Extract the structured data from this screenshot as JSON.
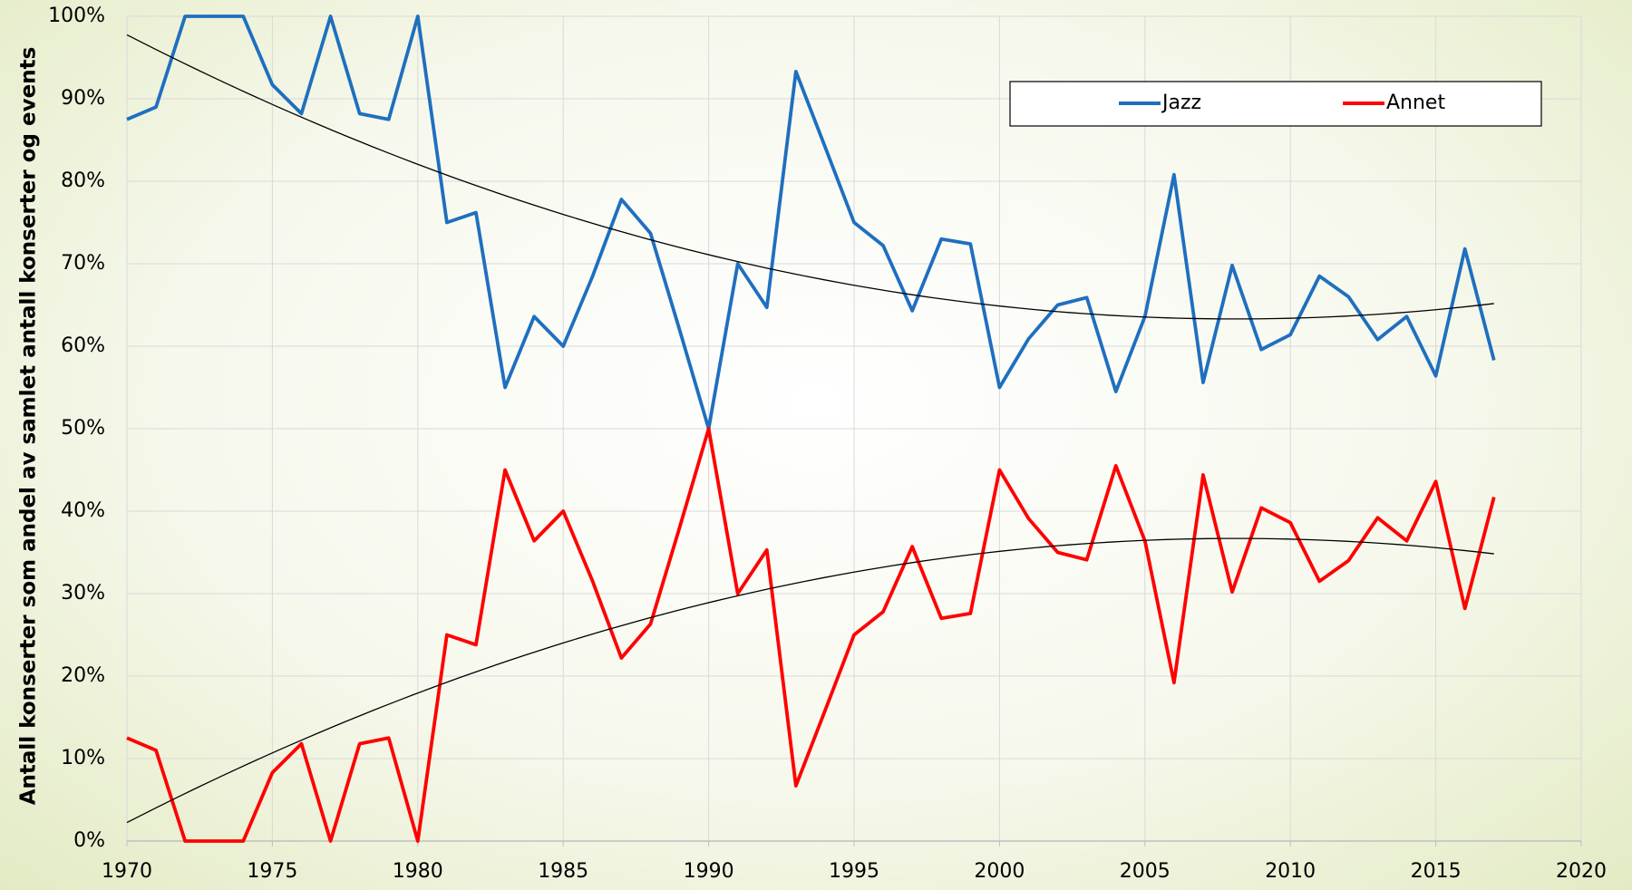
{
  "chart_data": {
    "type": "line",
    "y_label": "Antall konserter som andel av samlet antall konserter og events",
    "x": [
      1970,
      1971,
      1972,
      1973,
      1974,
      1975,
      1976,
      1977,
      1978,
      1979,
      1980,
      1981,
      1982,
      1983,
      1984,
      1985,
      1986,
      1987,
      1988,
      1989,
      1990,
      1991,
      1992,
      1993,
      1994,
      1995,
      1996,
      1997,
      1998,
      1999,
      2000,
      2001,
      2002,
      2003,
      2004,
      2005,
      2006,
      2007,
      2008,
      2009,
      2010,
      2011,
      2012,
      2013,
      2014,
      2015,
      2016,
      2017
    ],
    "series": [
      {
        "name": "Jazz",
        "color": "#1f6fbf",
        "values": [
          87.5,
          89,
          100,
          100,
          100,
          91.7,
          88.2,
          100,
          88.2,
          87.5,
          100,
          75,
          76.2,
          55,
          63.6,
          60,
          68.4,
          77.8,
          73.7,
          62,
          50,
          70,
          64.7,
          93.3,
          84.2,
          75,
          72.2,
          64.3,
          73,
          72.4,
          55,
          60.9,
          65,
          65.9,
          54.5,
          63.6,
          80.8,
          55.6,
          69.8,
          59.6,
          61.4,
          68.5,
          66,
          60.8,
          63.6,
          56.4,
          71.8,
          58.3
        ]
      },
      {
        "name": "Annet",
        "color": "#ff0000",
        "values": [
          12.5,
          11,
          0,
          0,
          0,
          8.3,
          11.8,
          0,
          11.8,
          12.5,
          0,
          25,
          23.8,
          45,
          36.4,
          40,
          31.6,
          22.2,
          26.3,
          38,
          50,
          30,
          35.3,
          6.7,
          15.8,
          25,
          27.8,
          35.7,
          27,
          27.6,
          45,
          39.1,
          35,
          34.1,
          45.5,
          36.4,
          19.2,
          44.4,
          30.2,
          40.4,
          38.6,
          31.5,
          34,
          39.2,
          36.4,
          43.6,
          28.2,
          41.7
        ]
      }
    ],
    "xlim": [
      1970,
      2020
    ],
    "xticks": [
      1970,
      1975,
      1980,
      1985,
      1990,
      1995,
      2000,
      2005,
      2010,
      2015,
      2020
    ],
    "ylim": [
      0,
      100
    ],
    "yticks": [
      {
        "value": 0,
        "label": "0%"
      },
      {
        "value": 10,
        "label": "10%"
      },
      {
        "value": 20,
        "label": "20%"
      },
      {
        "value": 30,
        "label": "30%"
      },
      {
        "value": 40,
        "label": "40%"
      },
      {
        "value": 50,
        "label": "50%"
      },
      {
        "value": 60,
        "label": "60%"
      },
      {
        "value": 70,
        "label": "70%"
      },
      {
        "value": 80,
        "label": "80%"
      },
      {
        "value": 90,
        "label": "90%"
      },
      {
        "value": 100,
        "label": "100%"
      }
    ],
    "grid": true,
    "legend": "top-right",
    "trendline_order": 2,
    "trendline_color": "#000000"
  }
}
